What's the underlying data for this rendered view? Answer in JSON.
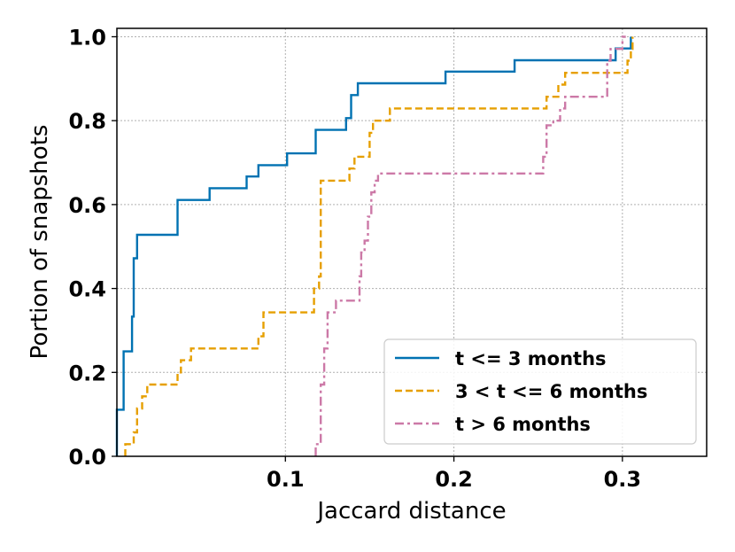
{
  "chart_data": {
    "type": "line",
    "step": true,
    "xlabel": "Jaccard distance",
    "ylabel": "Portion of snapshots",
    "xlim": [
      0.0,
      0.35
    ],
    "ylim": [
      0.0,
      1.02
    ],
    "xticks": [
      {
        "value": 0.1,
        "label": "0.1"
      },
      {
        "value": 0.2,
        "label": "0.2"
      },
      {
        "value": 0.3,
        "label": "0.3"
      }
    ],
    "yticks": [
      {
        "value": 0.0,
        "label": "0.0"
      },
      {
        "value": 0.2,
        "label": "0.2"
      },
      {
        "value": 0.4,
        "label": "0.4"
      },
      {
        "value": 0.6,
        "label": "0.6"
      },
      {
        "value": 0.8,
        "label": "0.8"
      },
      {
        "value": 1.0,
        "label": "1.0"
      }
    ],
    "grid": true,
    "legend_position": "lower-right",
    "series": [
      {
        "name": "t <= 3 months",
        "color": "#0072b2",
        "dash": "solid",
        "points": [
          [
            0.0,
            0.0
          ],
          [
            0.0,
            0.111
          ],
          [
            0.004,
            0.111
          ],
          [
            0.004,
            0.25
          ],
          [
            0.009,
            0.25
          ],
          [
            0.009,
            0.333
          ],
          [
            0.01,
            0.333
          ],
          [
            0.01,
            0.472
          ],
          [
            0.012,
            0.472
          ],
          [
            0.012,
            0.528
          ],
          [
            0.036,
            0.528
          ],
          [
            0.036,
            0.611
          ],
          [
            0.055,
            0.611
          ],
          [
            0.055,
            0.639
          ],
          [
            0.077,
            0.639
          ],
          [
            0.077,
            0.667
          ],
          [
            0.084,
            0.667
          ],
          [
            0.084,
            0.694
          ],
          [
            0.101,
            0.694
          ],
          [
            0.101,
            0.722
          ],
          [
            0.118,
            0.722
          ],
          [
            0.118,
            0.778
          ],
          [
            0.136,
            0.778
          ],
          [
            0.136,
            0.806
          ],
          [
            0.139,
            0.806
          ],
          [
            0.139,
            0.861
          ],
          [
            0.143,
            0.861
          ],
          [
            0.143,
            0.889
          ],
          [
            0.195,
            0.889
          ],
          [
            0.195,
            0.917
          ],
          [
            0.236,
            0.917
          ],
          [
            0.236,
            0.944
          ],
          [
            0.296,
            0.944
          ],
          [
            0.296,
            0.972
          ],
          [
            0.305,
            0.972
          ],
          [
            0.305,
            1.0
          ]
        ]
      },
      {
        "name": "3 < t <= 6 months",
        "color": "#e69f00",
        "dash": "dashed",
        "points": [
          [
            0.005,
            0.0
          ],
          [
            0.005,
            0.029
          ],
          [
            0.01,
            0.029
          ],
          [
            0.01,
            0.057
          ],
          [
            0.012,
            0.057
          ],
          [
            0.012,
            0.114
          ],
          [
            0.015,
            0.114
          ],
          [
            0.015,
            0.143
          ],
          [
            0.018,
            0.143
          ],
          [
            0.018,
            0.171
          ],
          [
            0.036,
            0.171
          ],
          [
            0.036,
            0.2
          ],
          [
            0.038,
            0.2
          ],
          [
            0.038,
            0.229
          ],
          [
            0.044,
            0.229
          ],
          [
            0.044,
            0.257
          ],
          [
            0.084,
            0.257
          ],
          [
            0.084,
            0.286
          ],
          [
            0.087,
            0.286
          ],
          [
            0.087,
            0.343
          ],
          [
            0.117,
            0.343
          ],
          [
            0.117,
            0.4
          ],
          [
            0.12,
            0.4
          ],
          [
            0.12,
            0.429
          ],
          [
            0.121,
            0.429
          ],
          [
            0.121,
            0.657
          ],
          [
            0.138,
            0.657
          ],
          [
            0.138,
            0.686
          ],
          [
            0.141,
            0.686
          ],
          [
            0.141,
            0.714
          ],
          [
            0.15,
            0.714
          ],
          [
            0.15,
            0.771
          ],
          [
            0.152,
            0.771
          ],
          [
            0.152,
            0.8
          ],
          [
            0.162,
            0.8
          ],
          [
            0.162,
            0.829
          ],
          [
            0.255,
            0.829
          ],
          [
            0.255,
            0.857
          ],
          [
            0.262,
            0.857
          ],
          [
            0.262,
            0.886
          ],
          [
            0.266,
            0.886
          ],
          [
            0.266,
            0.914
          ],
          [
            0.303,
            0.914
          ],
          [
            0.303,
            0.943
          ],
          [
            0.305,
            0.943
          ],
          [
            0.305,
            0.971
          ],
          [
            0.306,
            0.971
          ],
          [
            0.306,
            1.0
          ]
        ]
      },
      {
        "name": "t > 6 months",
        "color": "#cc79a7",
        "dash": "dashdot",
        "points": [
          [
            0.118,
            0.0
          ],
          [
            0.118,
            0.029
          ],
          [
            0.121,
            0.029
          ],
          [
            0.121,
            0.171
          ],
          [
            0.123,
            0.171
          ],
          [
            0.123,
            0.257
          ],
          [
            0.125,
            0.257
          ],
          [
            0.125,
            0.343
          ],
          [
            0.13,
            0.343
          ],
          [
            0.13,
            0.371
          ],
          [
            0.144,
            0.371
          ],
          [
            0.144,
            0.429
          ],
          [
            0.145,
            0.429
          ],
          [
            0.145,
            0.486
          ],
          [
            0.147,
            0.486
          ],
          [
            0.147,
            0.514
          ],
          [
            0.149,
            0.514
          ],
          [
            0.149,
            0.571
          ],
          [
            0.151,
            0.571
          ],
          [
            0.151,
            0.629
          ],
          [
            0.153,
            0.629
          ],
          [
            0.153,
            0.657
          ],
          [
            0.155,
            0.657
          ],
          [
            0.155,
            0.674
          ],
          [
            0.253,
            0.674
          ],
          [
            0.253,
            0.714
          ],
          [
            0.255,
            0.714
          ],
          [
            0.255,
            0.789
          ],
          [
            0.259,
            0.789
          ],
          [
            0.259,
            0.8
          ],
          [
            0.263,
            0.8
          ],
          [
            0.263,
            0.829
          ],
          [
            0.266,
            0.829
          ],
          [
            0.266,
            0.857
          ],
          [
            0.291,
            0.857
          ],
          [
            0.291,
            0.943
          ],
          [
            0.293,
            0.943
          ],
          [
            0.293,
            0.971
          ],
          [
            0.3,
            0.971
          ],
          [
            0.3,
            1.0
          ],
          [
            0.302,
            1.0
          ]
        ]
      }
    ]
  }
}
